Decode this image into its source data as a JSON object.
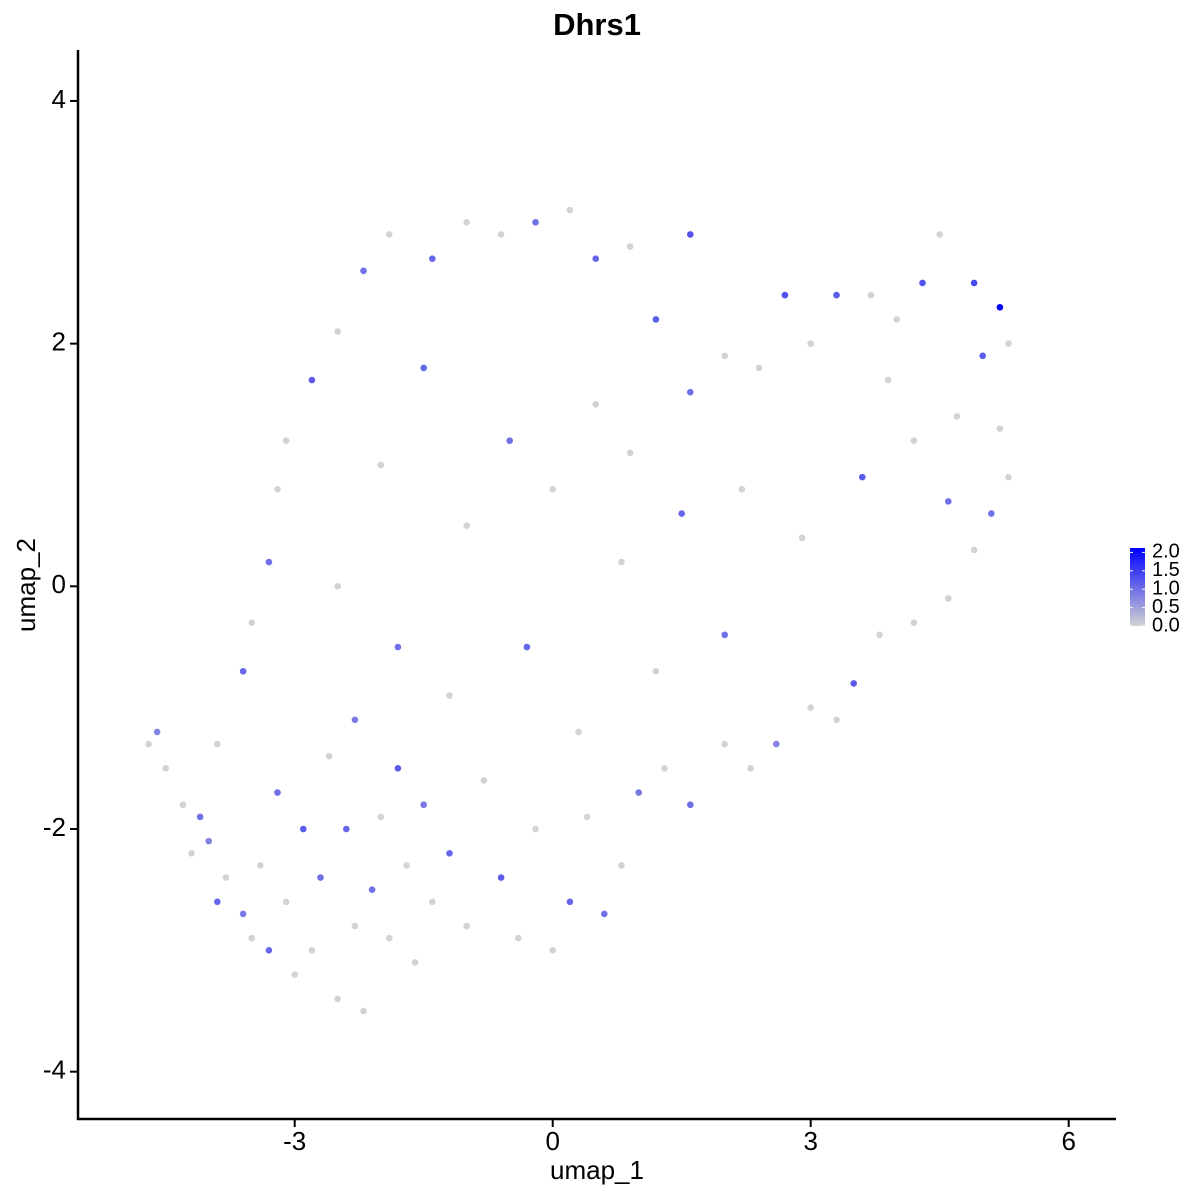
{
  "chart_data": {
    "type": "scatter",
    "title": "Dhrs1",
    "x_label": "umap_1",
    "y_label": "umap_2",
    "xlim": [
      -5.52,
      6.55
    ],
    "ylim": [
      -4.39,
      4.42
    ],
    "xticks": [
      -3,
      0,
      3,
      6
    ],
    "yticks": [
      -4,
      -2,
      0,
      2,
      4
    ],
    "color_low": "#d3d3d3",
    "color_high": "#0000ff",
    "colorlim": [
      0,
      2.12
    ],
    "colorticks": [
      {
        "value": 0,
        "label": "0.0"
      },
      {
        "value": 0.5,
        "label": "0.5"
      },
      {
        "value": 1,
        "label": "1.0"
      },
      {
        "value": 1.5,
        "label": "1.5"
      },
      {
        "value": 2,
        "label": "2.0"
      }
    ],
    "x": [
      -4.7,
      -4.6,
      -4.5,
      -4.3,
      -4.2,
      -4.1,
      -4.0,
      -3.9,
      -3.8,
      -3.6,
      -3.5,
      -3.4,
      -3.3,
      -3.2,
      -3.1,
      -3.0,
      -2.9,
      -2.8,
      -2.7,
      -2.6,
      -2.5,
      -2.4,
      -2.3,
      -2.2,
      -2.1,
      -2.0,
      -1.9,
      -1.8,
      -1.7,
      -1.6,
      -1.5,
      -1.4,
      -1.2,
      -1.0,
      -0.8,
      -0.6,
      -0.4,
      -0.2,
      0.0,
      0.2,
      0.4,
      0.6,
      0.8,
      1.0,
      1.3,
      1.6,
      2.0,
      2.3,
      2.6,
      3.0,
      3.3,
      3.5,
      3.8,
      4.2,
      4.6,
      4.9,
      5.1,
      5.3,
      5.2,
      5.0,
      5.2,
      5.3,
      4.9,
      4.5,
      4.3,
      4.0,
      3.7,
      3.3,
      3.0,
      2.7,
      2.4,
      2.0,
      1.6,
      1.2,
      1.6,
      0.9,
      0.5,
      0.2,
      -0.2,
      -0.6,
      -1.0,
      -1.4,
      -1.9,
      -2.2,
      -2.5,
      -2.8,
      -3.1,
      -3.2,
      -3.3,
      -3.5,
      -3.6,
      -3.9,
      -2.0,
      -1.5,
      -1.0,
      -0.5,
      0.0,
      0.5,
      -0.3,
      -2.5,
      -1.8,
      0.8,
      1.5,
      2.2,
      2.9,
      3.6,
      4.2,
      4.6,
      1.2,
      2.0,
      0.3,
      -1.2,
      3.9,
      4.7,
      -2.3,
      0.9
    ],
    "y": [
      -1.3,
      -1.2,
      -1.5,
      -1.8,
      -2.2,
      -1.9,
      -2.1,
      -2.6,
      -2.4,
      -2.7,
      -2.9,
      -2.3,
      -3.0,
      -1.7,
      -2.6,
      -3.2,
      -2.0,
      -3.0,
      -2.4,
      -1.4,
      -3.4,
      -2.0,
      -2.8,
      -3.5,
      -2.5,
      -1.9,
      -2.9,
      -1.5,
      -2.3,
      -3.1,
      -1.8,
      -2.6,
      -2.2,
      -2.8,
      -1.6,
      -2.4,
      -2.9,
      -2.0,
      -3.0,
      -2.6,
      -1.9,
      -2.7,
      -2.3,
      -1.7,
      -1.5,
      -1.8,
      -1.3,
      -1.5,
      -1.3,
      -1.0,
      -1.1,
      -0.8,
      -0.4,
      -0.3,
      -0.1,
      0.3,
      0.6,
      0.9,
      1.3,
      1.9,
      2.3,
      2.0,
      2.5,
      2.9,
      2.5,
      2.2,
      2.4,
      2.4,
      2.0,
      2.4,
      1.8,
      1.9,
      1.6,
      2.2,
      2.9,
      2.8,
      2.7,
      3.1,
      3.0,
      2.9,
      3.0,
      2.7,
      2.9,
      2.6,
      2.1,
      1.7,
      1.2,
      0.8,
      0.2,
      -0.3,
      -0.7,
      -1.3,
      1.0,
      1.8,
      0.5,
      1.2,
      0.8,
      1.5,
      -0.5,
      0.0,
      -0.5,
      0.2,
      0.6,
      0.8,
      0.4,
      0.9,
      1.2,
      0.7,
      -0.7,
      -0.4,
      -1.2,
      -0.9,
      1.7,
      1.4,
      -1.1,
      1.1
    ],
    "values": [
      0,
      0.8,
      0,
      0,
      0,
      1.0,
      0.8,
      1.1,
      0,
      0.9,
      0,
      0,
      1.1,
      1.0,
      0,
      0,
      1.2,
      0,
      1.0,
      0,
      0,
      1.1,
      0,
      0,
      1.0,
      0,
      0,
      1.2,
      0,
      0,
      0.9,
      0,
      1.1,
      0,
      0,
      1.2,
      0,
      0,
      0,
      1.1,
      0,
      1.0,
      0,
      0.9,
      0,
      1.0,
      0,
      0,
      0.8,
      0,
      0,
      1.2,
      0,
      0,
      0,
      0,
      1.0,
      0,
      0,
      1.2,
      2.1,
      0,
      1.4,
      0,
      1.3,
      0,
      0,
      1.2,
      0,
      1.3,
      0,
      0,
      1.0,
      1.2,
      1.3,
      0,
      1.1,
      0,
      1.0,
      0,
      0,
      1.1,
      0,
      1.0,
      0,
      1.2,
      0,
      0,
      1.0,
      0,
      1.1,
      0,
      0,
      1.1,
      0,
      1.0,
      0,
      0,
      1.1,
      0,
      1.0,
      0,
      1.1,
      0,
      0,
      1.2,
      0,
      1.0,
      0,
      1.0,
      0,
      0,
      0,
      0,
      0.9,
      0
    ]
  }
}
